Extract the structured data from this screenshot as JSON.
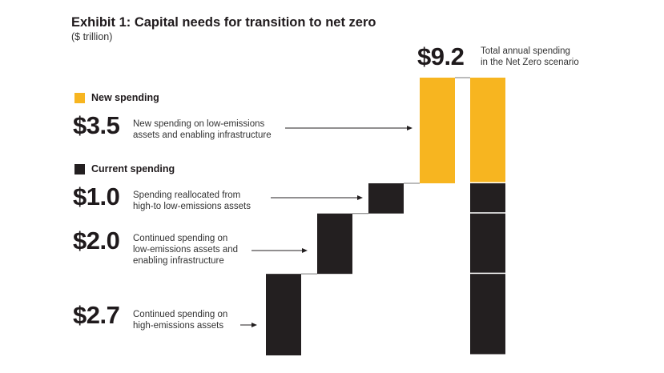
{
  "title": "Exhibit 1: Capital needs for transition to net zero",
  "subtitle": "($ trillion)",
  "colors": {
    "new": "#F7B520",
    "current": "#231F20"
  },
  "legend": {
    "new_label": "New spending",
    "current_label": "Current spending"
  },
  "total": {
    "label": "$9.2",
    "text": "Total annual spending in the Net Zero scenario",
    "line1": "Total annual spending",
    "line2": "in the Net Zero scenario"
  },
  "chart_data": {
    "type": "bar",
    "subtype": "waterfall",
    "title": "Exhibit 1: Capital needs for transition to net zero",
    "unit": "$ trillion",
    "categories": [
      "Continued spending on high-emissions assets",
      "Continued spending on low-emissions assets and enabling infrastructure",
      "Spending reallocated from high-to low-emissions assets",
      "New spending on low-emissions assets and enabling infrastructure"
    ],
    "values": [
      2.7,
      2.0,
      1.0,
      3.5
    ],
    "value_labels": [
      "$2.7",
      "$2.0",
      "$1.0",
      "$3.5"
    ],
    "groups": [
      "current",
      "current",
      "current",
      "new"
    ],
    "total": 9.2,
    "total_label": "$9.2",
    "legend": [
      "New spending",
      "Current spending"
    ],
    "ylim": [
      0,
      9.2
    ]
  },
  "items": [
    {
      "value": "$3.5",
      "lines": [
        "New spending on low-emissions",
        "assets and enabling infrastructure"
      ]
    },
    {
      "value": "$1.0",
      "lines": [
        "Spending reallocated from",
        "high-to low-emissions assets"
      ]
    },
    {
      "value": "$2.0",
      "lines": [
        "Continued spending on",
        "low-emissions assets and",
        "enabling infrastructure"
      ]
    },
    {
      "value": "$2.7",
      "lines": [
        "Continued spending on",
        "high-emissions assets"
      ]
    }
  ]
}
